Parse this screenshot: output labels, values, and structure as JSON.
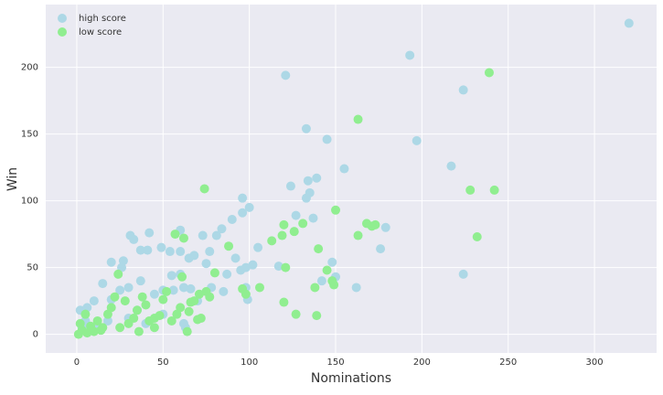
{
  "chart_data": {
    "type": "scatter",
    "xlabel": "Nominations",
    "ylabel": "Win",
    "xlim": [
      -18,
      336
    ],
    "ylim": [
      -14,
      247
    ],
    "xticks": [
      0,
      50,
      100,
      150,
      200,
      250,
      300
    ],
    "yticks": [
      0,
      50,
      100,
      150,
      200
    ],
    "grid": true,
    "legend": "upper-left",
    "series": [
      {
        "name": "high score",
        "color": "#add8e6",
        "x": [
          320,
          193,
          224,
          121,
          197,
          217,
          133,
          145,
          155,
          139,
          134,
          124,
          135,
          133,
          96,
          100,
          96,
          127,
          137,
          179,
          176,
          105,
          81,
          84,
          90,
          73,
          77,
          60,
          42,
          31,
          33,
          37,
          41,
          49,
          54,
          60,
          65,
          68,
          75,
          92,
          98,
          102,
          117,
          142,
          150,
          148,
          162,
          224,
          98,
          99,
          60,
          55,
          37,
          30,
          25,
          15,
          10,
          6,
          20,
          27,
          26,
          20,
          45,
          50,
          56,
          62,
          66,
          70,
          78,
          87,
          95,
          85,
          5,
          2,
          12,
          18,
          30,
          35,
          40,
          50,
          62,
          63,
          8,
          3
        ],
        "y": [
          233,
          209,
          183,
          194,
          145,
          126,
          154,
          146,
          124,
          117,
          115,
          111,
          106,
          102,
          102,
          95,
          91,
          89,
          87,
          80,
          64,
          65,
          74,
          79,
          86,
          74,
          62,
          78,
          76,
          74,
          71,
          63,
          63,
          65,
          62,
          62,
          57,
          59,
          53,
          57,
          50,
          52,
          51,
          40,
          43,
          54,
          35,
          45,
          35,
          26,
          45,
          44,
          40,
          35,
          33,
          38,
          25,
          20,
          26,
          55,
          50,
          54,
          30,
          33,
          33,
          35,
          34,
          25,
          35,
          45,
          48,
          32,
          10,
          18,
          5,
          10,
          12,
          18,
          8,
          15,
          8,
          5,
          3,
          5
        ]
      },
      {
        "name": "low score",
        "color": "#90ee90",
        "x": [
          239,
          163,
          74,
          228,
          242,
          150,
          168,
          171,
          173,
          120,
          131,
          119,
          163,
          126,
          113,
          232,
          88,
          57,
          62,
          140,
          145,
          121,
          148,
          149,
          138,
          106,
          80,
          61,
          96,
          98,
          71,
          75,
          77,
          68,
          66,
          120,
          127,
          139,
          65,
          64,
          70,
          72,
          50,
          52,
          48,
          45,
          58,
          42,
          40,
          38,
          35,
          30,
          28,
          24,
          22,
          20,
          18,
          15,
          12,
          10,
          8,
          5,
          3,
          1,
          2,
          6,
          14,
          25,
          33,
          55,
          60,
          45,
          36
        ],
        "y": [
          196,
          161,
          109,
          108,
          108,
          93,
          83,
          81,
          82,
          82,
          83,
          74,
          74,
          77,
          70,
          73,
          66,
          75,
          72,
          64,
          48,
          50,
          40,
          37,
          35,
          35,
          46,
          43,
          34,
          30,
          30,
          32,
          28,
          25,
          24,
          24,
          15,
          14,
          17,
          2,
          11,
          12,
          26,
          32,
          14,
          12,
          15,
          10,
          22,
          28,
          18,
          8,
          25,
          45,
          28,
          20,
          15,
          5,
          10,
          2,
          6,
          15,
          3,
          0,
          8,
          1,
          3,
          5,
          12,
          10,
          20,
          5,
          2
        ]
      }
    ]
  }
}
